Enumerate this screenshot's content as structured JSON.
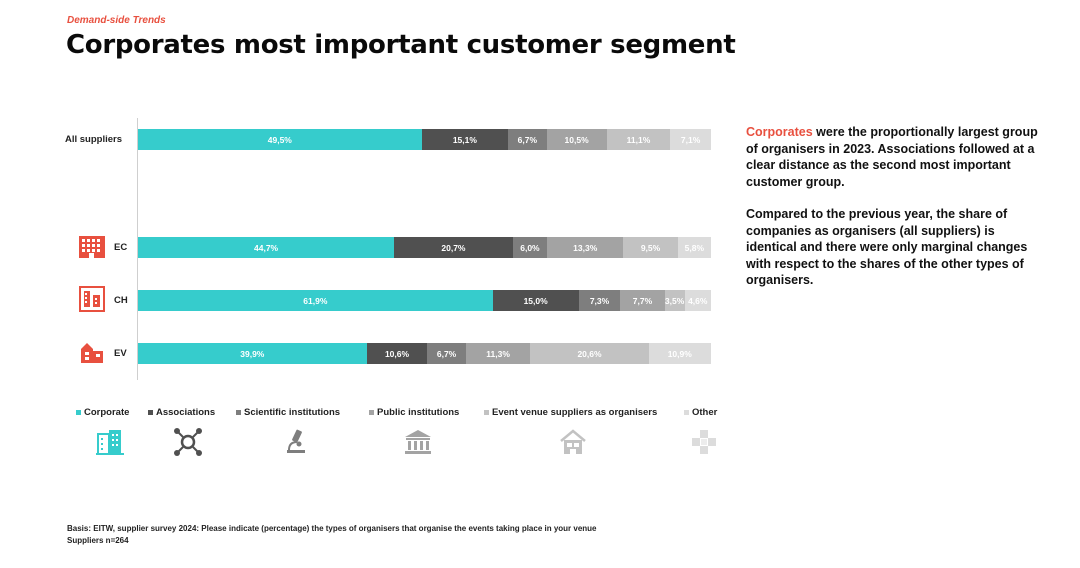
{
  "header": {
    "kicker": "Demand-side Trends",
    "title": "Corporates most important customer segment"
  },
  "chart_data": {
    "type": "bar",
    "orientation": "horizontal-stacked-100",
    "categories": [
      "All suppliers",
      "EC",
      "CH",
      "EV"
    ],
    "series": [
      {
        "name": "Corporate",
        "color": "#36cccc",
        "values": [
          49.5,
          44.7,
          61.9,
          39.9
        ],
        "labels": [
          "49,5%",
          "44,7%",
          "61,9%",
          "39,9%"
        ]
      },
      {
        "name": "Associations",
        "color": "#505050",
        "values": [
          15.1,
          20.7,
          15.0,
          10.6
        ],
        "labels": [
          "15,1%",
          "20,7%",
          "15,0%",
          "10,6%"
        ]
      },
      {
        "name": "Scientific institutions",
        "color": "#7e7e7e",
        "values": [
          6.7,
          6.0,
          7.3,
          6.7
        ],
        "labels": [
          "6,7%",
          "6,0%",
          "7,3%",
          "6,7%"
        ]
      },
      {
        "name": "Public institutions",
        "color": "#a3a3a3",
        "values": [
          10.5,
          13.3,
          7.7,
          11.3
        ],
        "labels": [
          "10,5%",
          "13,3%",
          "7,7%",
          "11,3%"
        ]
      },
      {
        "name": "Event venue suppliers as organisers",
        "color": "#c2c2c2",
        "values": [
          11.1,
          9.5,
          3.5,
          20.6
        ],
        "labels": [
          "11,1%",
          "9,5%",
          "3,5%",
          "20,6%"
        ]
      },
      {
        "name": "Other",
        "color": "#dcdcdc",
        "values": [
          7.1,
          5.8,
          4.6,
          10.9
        ],
        "labels": [
          "7,1%",
          "5,8%",
          "4,6%",
          "10,9%"
        ]
      }
    ],
    "xlim": [
      0,
      100
    ],
    "legend_position": "bottom"
  },
  "icons": {
    "rows": [
      "",
      "ec-building-icon",
      "ch-building-icon",
      "ev-venue-icon"
    ],
    "legend": [
      "corporate-building-icon",
      "associations-network-icon",
      "microscope-icon",
      "public-institution-icon",
      "venue-house-icon",
      "other-puzzle-icon"
    ]
  },
  "side": {
    "p1_accent": "Corporates",
    "p1_rest": " were the proportionally largest group of organisers in 2023. Associations followed at a clear distance as the second most important customer group.",
    "p2": "Compared to the previous year, the share of companies as organisers (all suppliers) is identical and there were only marginal changes with respect to the shares of the other types of organisers."
  },
  "basis": {
    "line1": "Basis: EITW, supplier survey 2024: Please indicate (percentage) the types of organisers that organise the events taking place in your venue",
    "line2": "Suppliers n=264"
  },
  "colors": {
    "accent": "#e8503f",
    "teal": "#36cccc"
  }
}
